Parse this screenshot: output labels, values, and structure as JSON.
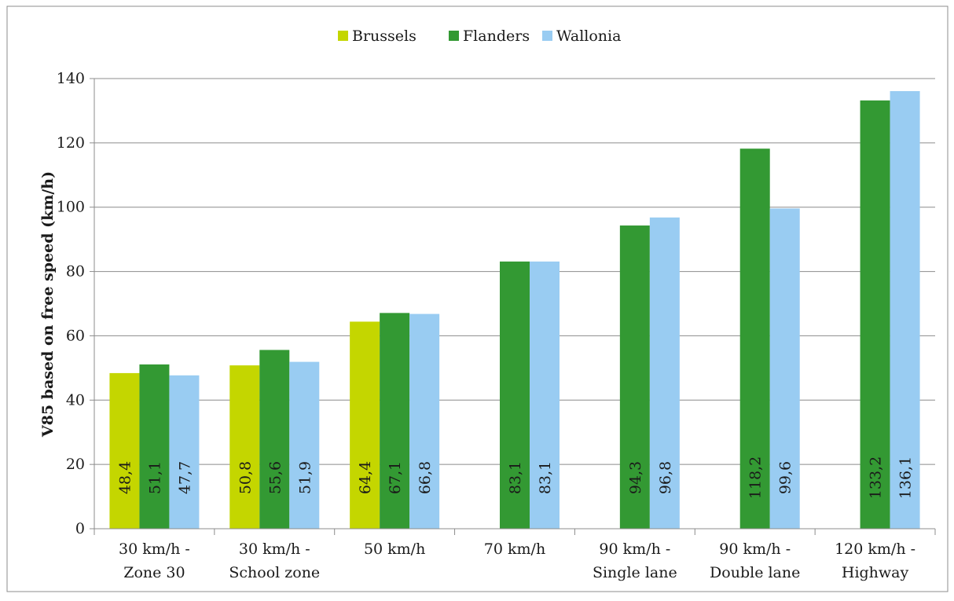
{
  "chart_data": {
    "type": "bar",
    "ylabel": "V85 based on free speed (km/h)",
    "ylim": [
      0,
      140
    ],
    "yticks": [
      0,
      20,
      40,
      60,
      80,
      100,
      120,
      140
    ],
    "grid": true,
    "legend_position": "top",
    "categories": [
      [
        "30 km/h -",
        "Zone 30"
      ],
      [
        "30 km/h -",
        "School zone"
      ],
      [
        "50 km/h"
      ],
      [
        "70 km/h"
      ],
      [
        "90 km/h -",
        "Single lane"
      ],
      [
        "90 km/h -",
        "Double lane"
      ],
      [
        "120 km/h -",
        "Highway"
      ]
    ],
    "series": [
      {
        "name": "Brussels",
        "color": "#c4d600",
        "values": [
          48.4,
          50.8,
          64.4,
          null,
          null,
          null,
          null
        ],
        "labels": [
          "48,4",
          "50,8",
          "64,4",
          null,
          null,
          null,
          null
        ]
      },
      {
        "name": "Flanders",
        "color": "#339933",
        "values": [
          51.1,
          55.6,
          67.1,
          83.1,
          94.3,
          118.2,
          133.2
        ],
        "labels": [
          "51,1",
          "55,6",
          "67,1",
          "83,1",
          "94,3",
          "118,2",
          "133,2"
        ]
      },
      {
        "name": "Wallonia",
        "color": "#99ccf2",
        "values": [
          47.7,
          51.9,
          66.8,
          83.1,
          96.8,
          99.6,
          136.1
        ],
        "labels": [
          "47,7",
          "51,9",
          "66,8",
          "83,1",
          "96,8",
          "99,6",
          "136,1"
        ]
      }
    ]
  }
}
